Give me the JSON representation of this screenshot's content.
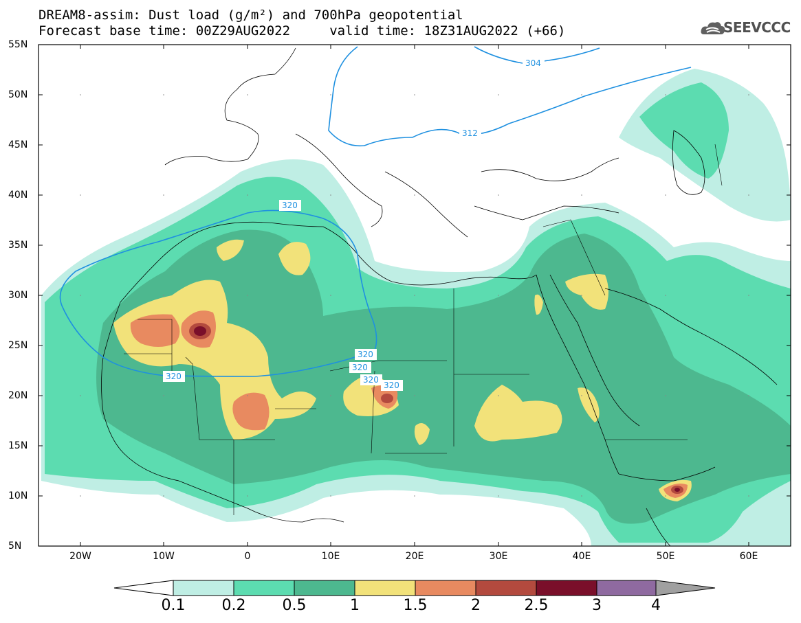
{
  "title": {
    "line1": "DREAM8-assim: Dust load (g/m²) and 700hPa geopotential",
    "line2": "Forecast base time: 00Z29AUG2022     valid time: 18Z31AUG2022 (+66)"
  },
  "logo": {
    "text": "SEEVCCC",
    "icon": "cloud-icon"
  },
  "axes": {
    "lat_labels": [
      "55N",
      "50N",
      "45N",
      "40N",
      "35N",
      "30N",
      "25N",
      "20N",
      "15N",
      "10N",
      "5N"
    ],
    "lon_labels": [
      "20W",
      "10W",
      "0",
      "10E",
      "20E",
      "30E",
      "40E",
      "50E",
      "60E"
    ],
    "lat_range": [
      5,
      55
    ],
    "lon_range": [
      -25,
      65
    ]
  },
  "contours": {
    "labels": [
      "304",
      "312",
      "320",
      "320",
      "320",
      "320",
      "320",
      "320"
    ]
  },
  "colorbar": {
    "levels": [
      "0.1",
      "0.2",
      "0.5",
      "1",
      "1.5",
      "2",
      "2.5",
      "3",
      "4"
    ],
    "colors": [
      "#bfeee4",
      "#5cdcb0",
      "#4db88f",
      "#f2e27a",
      "#e88a60",
      "#b34a3e",
      "#7a0f2a",
      "#8f6aa0",
      "#a0a0a0"
    ]
  },
  "map_colors": {
    "c01": "#bfeee4",
    "c02": "#5cdcb0",
    "c05": "#4db88f",
    "c1": "#f2e27a",
    "c15": "#e88a60",
    "c2": "#b34a3e",
    "c25": "#7a0f2a",
    "contour": "#1e90e0"
  }
}
